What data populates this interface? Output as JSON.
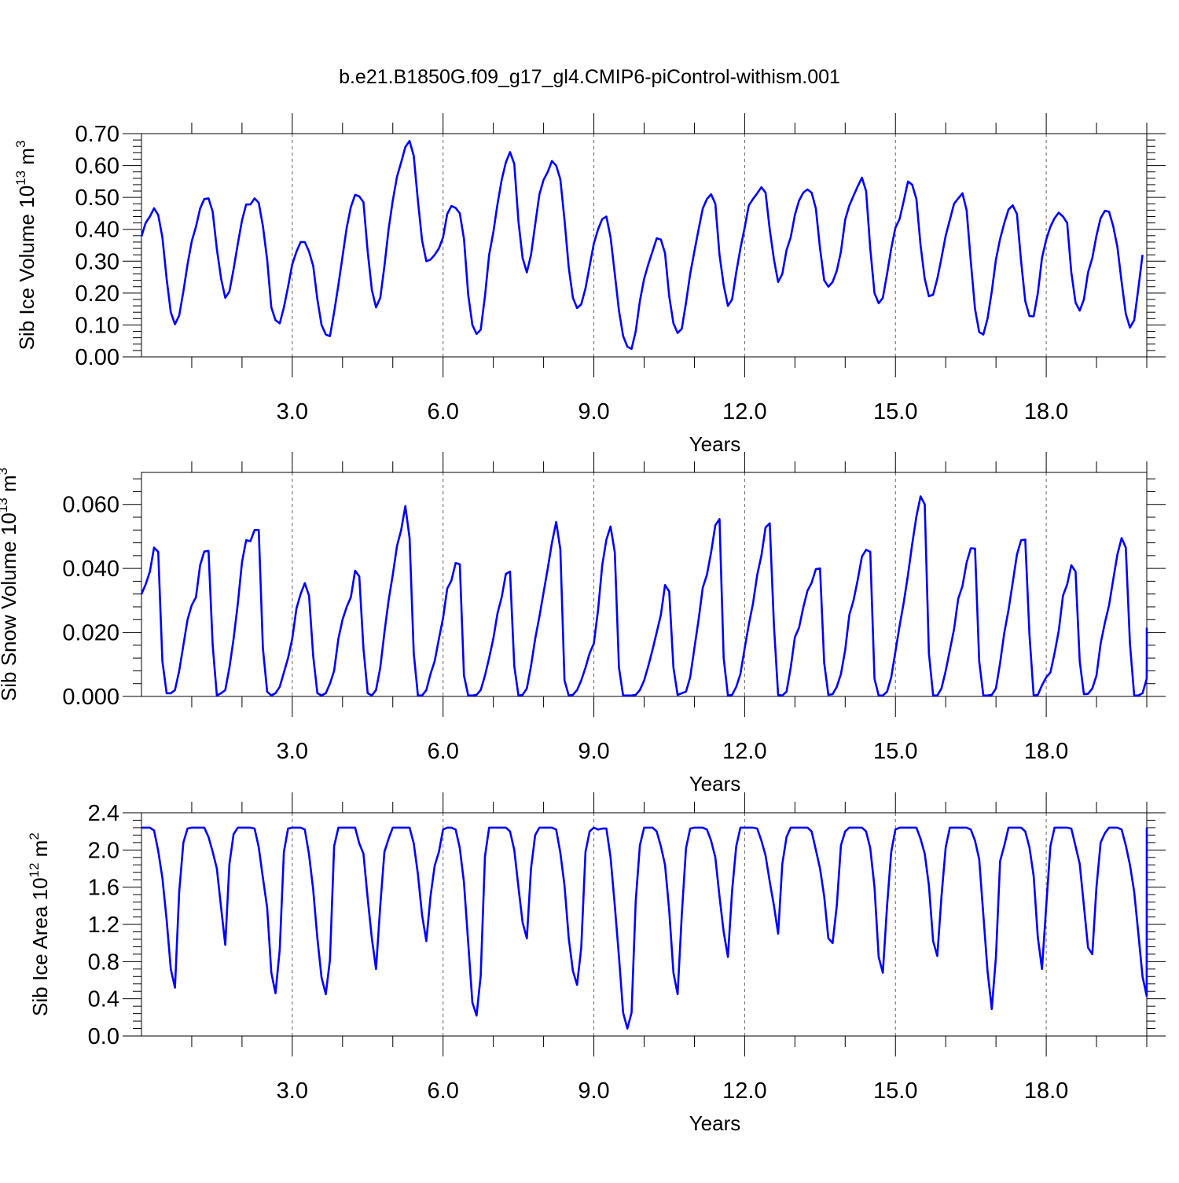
{
  "figure": {
    "title": "b.e21.B1850G.f09_g17_gl4.CMIP6-piControl-withism.001"
  },
  "colors": {
    "series": "#0000ff",
    "grid": "#666666",
    "axes": "#000000"
  },
  "chart_data": [
    {
      "type": "line",
      "name": "ice-volume",
      "ylabel_main": "Sib Ice Volume 10",
      "ylabel_exp": "13",
      "ylabel_unit": " m",
      "ylabel_unit_exp": "3",
      "xlabel": "Years",
      "xlim": [
        0.0,
        20.0
      ],
      "ylim": [
        0.0,
        0.7
      ],
      "xticks": [
        3.0,
        6.0,
        9.0,
        12.0,
        15.0,
        18.0
      ],
      "xtick_labels": [
        "3.0",
        "6.0",
        "9.0",
        "12.0",
        "15.0",
        "18.0"
      ],
      "yticks": [
        0.0,
        0.1,
        0.2,
        0.3,
        0.4,
        0.5,
        0.6,
        0.7
      ],
      "ytick_labels": [
        "0.00",
        "0.10",
        "0.20",
        "0.30",
        "0.40",
        "0.50",
        "0.60",
        "0.70"
      ],
      "grid": "vertical dashed at labeled x ticks",
      "x_start": 0.0,
      "x_step": 0.08333,
      "values": [
        0.378,
        0.42,
        0.44,
        0.466,
        0.445,
        0.375,
        0.245,
        0.14,
        0.102,
        0.13,
        0.205,
        0.29,
        0.362,
        0.408,
        0.465,
        0.495,
        0.497,
        0.455,
        0.338,
        0.245,
        0.185,
        0.205,
        0.275,
        0.355,
        0.428,
        0.478,
        0.478,
        0.497,
        0.483,
        0.41,
        0.305,
        0.155,
        0.115,
        0.105,
        0.155,
        0.22,
        0.29,
        0.33,
        0.36,
        0.36,
        0.33,
        0.285,
        0.18,
        0.1,
        0.07,
        0.065,
        0.14,
        0.225,
        0.315,
        0.405,
        0.47,
        0.508,
        0.503,
        0.485,
        0.33,
        0.21,
        0.155,
        0.185,
        0.285,
        0.4,
        0.49,
        0.565,
        0.61,
        0.658,
        0.677,
        0.63,
        0.49,
        0.365,
        0.3,
        0.305,
        0.32,
        0.34,
        0.375,
        0.448,
        0.473,
        0.467,
        0.45,
        0.37,
        0.195,
        0.1,
        0.072,
        0.085,
        0.19,
        0.32,
        0.39,
        0.48,
        0.555,
        0.61,
        0.642,
        0.605,
        0.425,
        0.31,
        0.265,
        0.32,
        0.415,
        0.51,
        0.555,
        0.58,
        0.614,
        0.6,
        0.557,
        0.43,
        0.28,
        0.185,
        0.153,
        0.165,
        0.215,
        0.285,
        0.355,
        0.4,
        0.432,
        0.44,
        0.375,
        0.26,
        0.145,
        0.065,
        0.032,
        0.025,
        0.08,
        0.175,
        0.245,
        0.29,
        0.33,
        0.372,
        0.368,
        0.325,
        0.19,
        0.105,
        0.075,
        0.088,
        0.17,
        0.26,
        0.33,
        0.4,
        0.465,
        0.495,
        0.51,
        0.48,
        0.32,
        0.225,
        0.16,
        0.18,
        0.265,
        0.34,
        0.405,
        0.475,
        0.495,
        0.513,
        0.532,
        0.515,
        0.4,
        0.305,
        0.235,
        0.26,
        0.335,
        0.375,
        0.445,
        0.49,
        0.515,
        0.525,
        0.515,
        0.465,
        0.34,
        0.24,
        0.22,
        0.235,
        0.27,
        0.33,
        0.43,
        0.475,
        0.505,
        0.535,
        0.562,
        0.52,
        0.34,
        0.2,
        0.168,
        0.185,
        0.26,
        0.34,
        0.405,
        0.432,
        0.49,
        0.55,
        0.54,
        0.495,
        0.35,
        0.245,
        0.19,
        0.195,
        0.245,
        0.31,
        0.38,
        0.43,
        0.48,
        0.497,
        0.513,
        0.46,
        0.3,
        0.15,
        0.078,
        0.07,
        0.12,
        0.205,
        0.305,
        0.37,
        0.42,
        0.462,
        0.475,
        0.448,
        0.3,
        0.175,
        0.128,
        0.127,
        0.2,
        0.31,
        0.368,
        0.408,
        0.435,
        0.452,
        0.44,
        0.42,
        0.265,
        0.17,
        0.145,
        0.18,
        0.265,
        0.31,
        0.38,
        0.435,
        0.458,
        0.455,
        0.41,
        0.345,
        0.235,
        0.135,
        0.092,
        0.115,
        0.215,
        0.32
      ]
    },
    {
      "type": "line",
      "name": "snow-volume",
      "ylabel_main": "Sib Snow Volume 10",
      "ylabel_exp": "13",
      "ylabel_unit": " m",
      "ylabel_unit_exp": "3",
      "xlabel": "Years",
      "xlim": [
        0.0,
        20.0
      ],
      "ylim": [
        0.0,
        0.07
      ],
      "xticks": [
        3.0,
        6.0,
        9.0,
        12.0,
        15.0,
        18.0
      ],
      "xtick_labels": [
        "3.0",
        "6.0",
        "9.0",
        "12.0",
        "15.0",
        "18.0"
      ],
      "yticks": [
        0.0,
        0.02,
        0.04,
        0.06
      ],
      "ytick_labels": [
        "0.000",
        "0.020",
        "0.040",
        "0.060"
      ],
      "grid": "vertical dashed at labeled x ticks",
      "x_start": 0.0,
      "x_step": 0.08333,
      "values": [
        0.032,
        0.035,
        0.039,
        0.0465,
        0.0452,
        0.011,
        0.001,
        0.001,
        0.002,
        0.008,
        0.016,
        0.024,
        0.0285,
        0.031,
        0.041,
        0.0453,
        0.0455,
        0.016,
        0.0003,
        0.001,
        0.002,
        0.009,
        0.018,
        0.029,
        0.042,
        0.0488,
        0.0485,
        0.052,
        0.052,
        0.015,
        0.0015,
        0.0003,
        0.001,
        0.003,
        0.0075,
        0.012,
        0.018,
        0.0275,
        0.032,
        0.0354,
        0.0315,
        0.0125,
        0.001,
        0.0003,
        0.001,
        0.004,
        0.008,
        0.018,
        0.024,
        0.028,
        0.031,
        0.0393,
        0.0375,
        0.015,
        0.001,
        0.0003,
        0.002,
        0.009,
        0.02,
        0.03,
        0.038,
        0.047,
        0.052,
        0.0595,
        0.0495,
        0.0135,
        0.0003,
        0.0003,
        0.002,
        0.007,
        0.011,
        0.018,
        0.0245,
        0.0337,
        0.0362,
        0.0417,
        0.0413,
        0.0065,
        0.0003,
        0.0003,
        0.0005,
        0.002,
        0.0065,
        0.012,
        0.018,
        0.026,
        0.031,
        0.0383,
        0.039,
        0.0095,
        0.0003,
        0.0005,
        0.0025,
        0.0095,
        0.018,
        0.025,
        0.0325,
        0.04,
        0.048,
        0.0545,
        0.046,
        0.005,
        0.0003,
        0.0005,
        0.002,
        0.005,
        0.009,
        0.0135,
        0.0165,
        0.027,
        0.041,
        0.049,
        0.0531,
        0.045,
        0.009,
        0.0003,
        0.0003,
        0.0003,
        0.0005,
        0.002,
        0.005,
        0.0095,
        0.0145,
        0.02,
        0.0255,
        0.0348,
        0.0328,
        0.009,
        0.0005,
        0.001,
        0.0015,
        0.006,
        0.015,
        0.024,
        0.034,
        0.038,
        0.045,
        0.0535,
        0.0554,
        0.012,
        0.0003,
        0.0005,
        0.003,
        0.007,
        0.015,
        0.0225,
        0.029,
        0.038,
        0.044,
        0.0528,
        0.0541,
        0.022,
        0.0005,
        0.0003,
        0.0015,
        0.009,
        0.0185,
        0.0215,
        0.0278,
        0.033,
        0.0355,
        0.0398,
        0.04,
        0.0105,
        0.0005,
        0.0007,
        0.003,
        0.007,
        0.0145,
        0.0255,
        0.03,
        0.0365,
        0.0437,
        0.0458,
        0.0452,
        0.0055,
        0.0003,
        0.0003,
        0.0015,
        0.006,
        0.014,
        0.022,
        0.0295,
        0.038,
        0.0475,
        0.0562,
        0.0625,
        0.06,
        0.0135,
        0.0003,
        0.0003,
        0.0025,
        0.008,
        0.0145,
        0.021,
        0.0305,
        0.0345,
        0.0418,
        0.0463,
        0.0462,
        0.011,
        0.0003,
        0.0003,
        0.0005,
        0.0025,
        0.0105,
        0.02,
        0.027,
        0.0355,
        0.0443,
        0.0488,
        0.049,
        0.0195,
        0.0003,
        0.0005,
        0.0035,
        0.006,
        0.0075,
        0.0135,
        0.0205,
        0.0315,
        0.035,
        0.041,
        0.039,
        0.011,
        0.0007,
        0.0008,
        0.0025,
        0.0065,
        0.0165,
        0.023,
        0.0285,
        0.0365,
        0.0443,
        0.0495,
        0.0465,
        0.0165,
        0.0003,
        0.0003,
        0.001,
        0.0055,
        0.0125,
        0.0215
      ]
    },
    {
      "type": "line",
      "name": "ice-area",
      "ylabel_main": "Sib Ice Area 10",
      "ylabel_exp": "12",
      "ylabel_unit": " m",
      "ylabel_unit_exp": "2",
      "xlabel": "Years",
      "xlim": [
        0.0,
        20.0
      ],
      "ylim": [
        0.0,
        2.4
      ],
      "xticks": [
        3.0,
        6.0,
        9.0,
        12.0,
        15.0,
        18.0
      ],
      "xtick_labels": [
        "3.0",
        "6.0",
        "9.0",
        "12.0",
        "15.0",
        "18.0"
      ],
      "yticks": [
        0.0,
        0.4,
        0.8,
        1.2,
        1.6,
        2.0,
        2.4
      ],
      "ytick_labels": [
        "0.0",
        "0.4",
        "0.8",
        "1.2",
        "1.6",
        "2.0",
        "2.4"
      ],
      "grid": "vertical dashed at labeled x ticks",
      "x_start": 0.0,
      "x_step": 0.08333,
      "values": [
        2.24,
        2.24,
        2.24,
        2.21,
        1.99,
        1.7,
        1.25,
        0.72,
        0.52,
        1.55,
        2.08,
        2.23,
        2.24,
        2.24,
        2.24,
        2.24,
        2.14,
        1.98,
        1.8,
        1.38,
        0.98,
        1.85,
        2.17,
        2.24,
        2.24,
        2.24,
        2.24,
        2.23,
        2.03,
        1.7,
        1.38,
        0.68,
        0.46,
        0.93,
        1.98,
        2.23,
        2.24,
        2.24,
        2.24,
        2.22,
        1.95,
        1.57,
        1.05,
        0.63,
        0.45,
        0.82,
        2.04,
        2.24,
        2.24,
        2.24,
        2.24,
        2.24,
        2.07,
        1.96,
        1.48,
        1.05,
        0.72,
        1.4,
        1.98,
        2.12,
        2.24,
        2.24,
        2.24,
        2.24,
        2.24,
        2.07,
        1.74,
        1.3,
        1.02,
        1.5,
        1.83,
        1.98,
        2.22,
        2.24,
        2.24,
        2.22,
        2.02,
        1.65,
        1.0,
        0.36,
        0.22,
        0.65,
        1.93,
        2.24,
        2.24,
        2.24,
        2.24,
        2.24,
        2.2,
        2.0,
        1.6,
        1.22,
        1.05,
        1.8,
        2.16,
        2.24,
        2.24,
        2.24,
        2.24,
        2.22,
        1.97,
        1.62,
        1.05,
        0.7,
        0.55,
        0.95,
        1.98,
        2.2,
        2.24,
        2.22,
        2.23,
        2.23,
        1.92,
        1.4,
        0.85,
        0.25,
        0.08,
        0.25,
        1.45,
        2.05,
        2.24,
        2.24,
        2.24,
        2.2,
        2.04,
        1.84,
        1.35,
        0.68,
        0.45,
        1.3,
        2.02,
        2.23,
        2.24,
        2.24,
        2.24,
        2.22,
        2.1,
        1.92,
        1.5,
        1.12,
        0.85,
        1.56,
        2.04,
        2.24,
        2.24,
        2.24,
        2.24,
        2.23,
        2.1,
        1.94,
        1.66,
        1.4,
        1.1,
        1.85,
        2.14,
        2.24,
        2.24,
        2.24,
        2.24,
        2.24,
        2.2,
        2.0,
        1.8,
        1.5,
        1.05,
        1.0,
        1.4,
        2.05,
        2.2,
        2.24,
        2.24,
        2.24,
        2.24,
        2.2,
        2.02,
        1.6,
        0.85,
        0.68,
        1.4,
        1.98,
        2.22,
        2.24,
        2.24,
        2.24,
        2.24,
        2.24,
        2.12,
        1.96,
        1.62,
        1.02,
        0.86,
        1.5,
        2.03,
        2.24,
        2.24,
        2.24,
        2.24,
        2.24,
        2.22,
        2.1,
        1.9,
        1.3,
        0.7,
        0.29,
        0.85,
        1.88,
        2.05,
        2.24,
        2.24,
        2.24,
        2.24,
        2.2,
        2.03,
        1.72,
        1.06,
        0.72,
        1.4,
        2.04,
        2.24,
        2.24,
        2.24,
        2.24,
        2.23,
        2.04,
        1.85,
        1.4,
        0.95,
        0.88,
        1.6,
        2.08,
        2.18,
        2.24,
        2.24,
        2.24,
        2.22,
        2.05,
        1.84,
        1.55,
        1.1,
        0.64,
        0.43,
        2.13,
        2.24
      ]
    }
  ]
}
